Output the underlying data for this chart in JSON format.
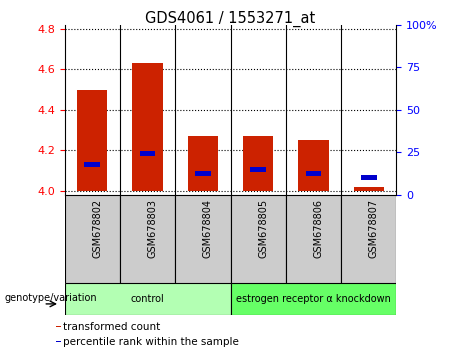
{
  "title": "GDS4061 / 1553271_at",
  "categories": [
    "GSM678802",
    "GSM678803",
    "GSM678804",
    "GSM678805",
    "GSM678806",
    "GSM678807"
  ],
  "red_values": [
    4.5,
    4.63,
    4.27,
    4.27,
    4.25,
    4.02
  ],
  "blue_values": [
    4.13,
    4.185,
    4.085,
    4.105,
    4.085,
    4.065
  ],
  "ylim_left": [
    3.98,
    4.82
  ],
  "ylim_right": [
    0,
    100
  ],
  "yticks_left": [
    4.0,
    4.2,
    4.4,
    4.6,
    4.8
  ],
  "yticks_right": [
    0,
    25,
    50,
    75,
    100
  ],
  "ytick_labels_right": [
    "0",
    "25",
    "50",
    "75",
    "100%"
  ],
  "groups": [
    {
      "label": "control",
      "span": [
        0,
        2
      ],
      "color": "#b3ffb3"
    },
    {
      "label": "estrogen receptor α knockdown",
      "span": [
        3,
        5
      ],
      "color": "#66ff66"
    }
  ],
  "bar_color": "#cc2200",
  "blue_color": "#0000cc",
  "legend_items": [
    {
      "label": "transformed count",
      "color": "#cc2200"
    },
    {
      "label": "percentile rank within the sample",
      "color": "#0000cc"
    }
  ],
  "genotype_label": "genotype/variation",
  "bar_width": 0.55,
  "base_value": 4.0,
  "blue_bar_height": 0.025,
  "blue_bar_width": 0.28
}
